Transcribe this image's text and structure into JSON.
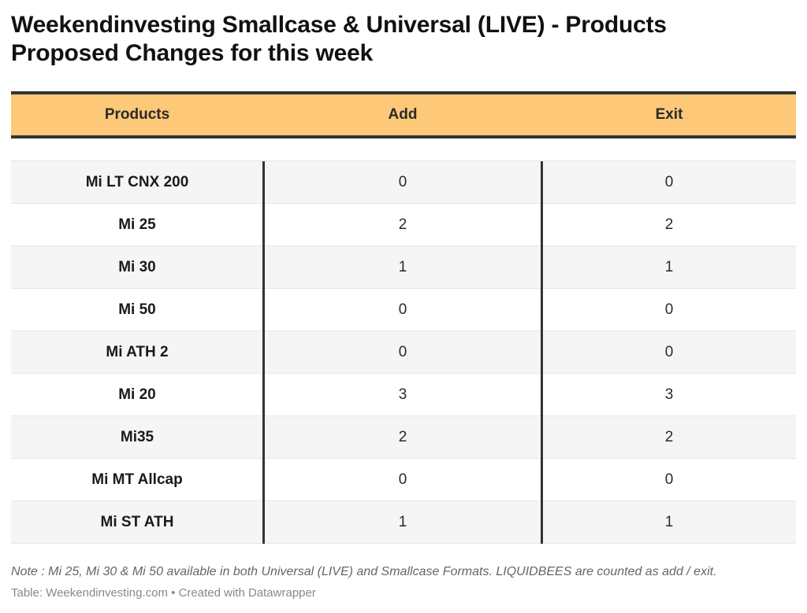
{
  "title": "Weekendinvesting Smallcase & Universal (LIVE) - Products Proposed Changes for this week",
  "columns": [
    "Products",
    "Add",
    "Exit"
  ],
  "chart_data": {
    "type": "table",
    "columns": [
      "Products",
      "Add",
      "Exit"
    ],
    "rows": [
      [
        "Mi LT CNX 200",
        "0",
        "0"
      ],
      [
        "Mi 25",
        "2",
        "2"
      ],
      [
        "Mi 30",
        "1",
        "1"
      ],
      [
        "Mi 50",
        "0",
        "0"
      ],
      [
        "Mi ATH 2",
        "0",
        "0"
      ],
      [
        "Mi 20",
        "3",
        "3"
      ],
      [
        "Mi35",
        "2",
        "2"
      ],
      [
        "Mi MT Allcap",
        "0",
        "0"
      ],
      [
        "Mi ST ATH",
        "1",
        "1"
      ]
    ]
  },
  "note": "Note : Mi 25, Mi 30 & Mi 50 available in both Universal (LIVE) and Smallcase Formats. LIQUIDBEES are counted as add / exit.",
  "credit": "Table: Weekendinvesting.com • Created with Datawrapper",
  "colors": {
    "header_bg": "#fdc877",
    "rule": "#333333",
    "row_alt": "#f5f5f5"
  }
}
